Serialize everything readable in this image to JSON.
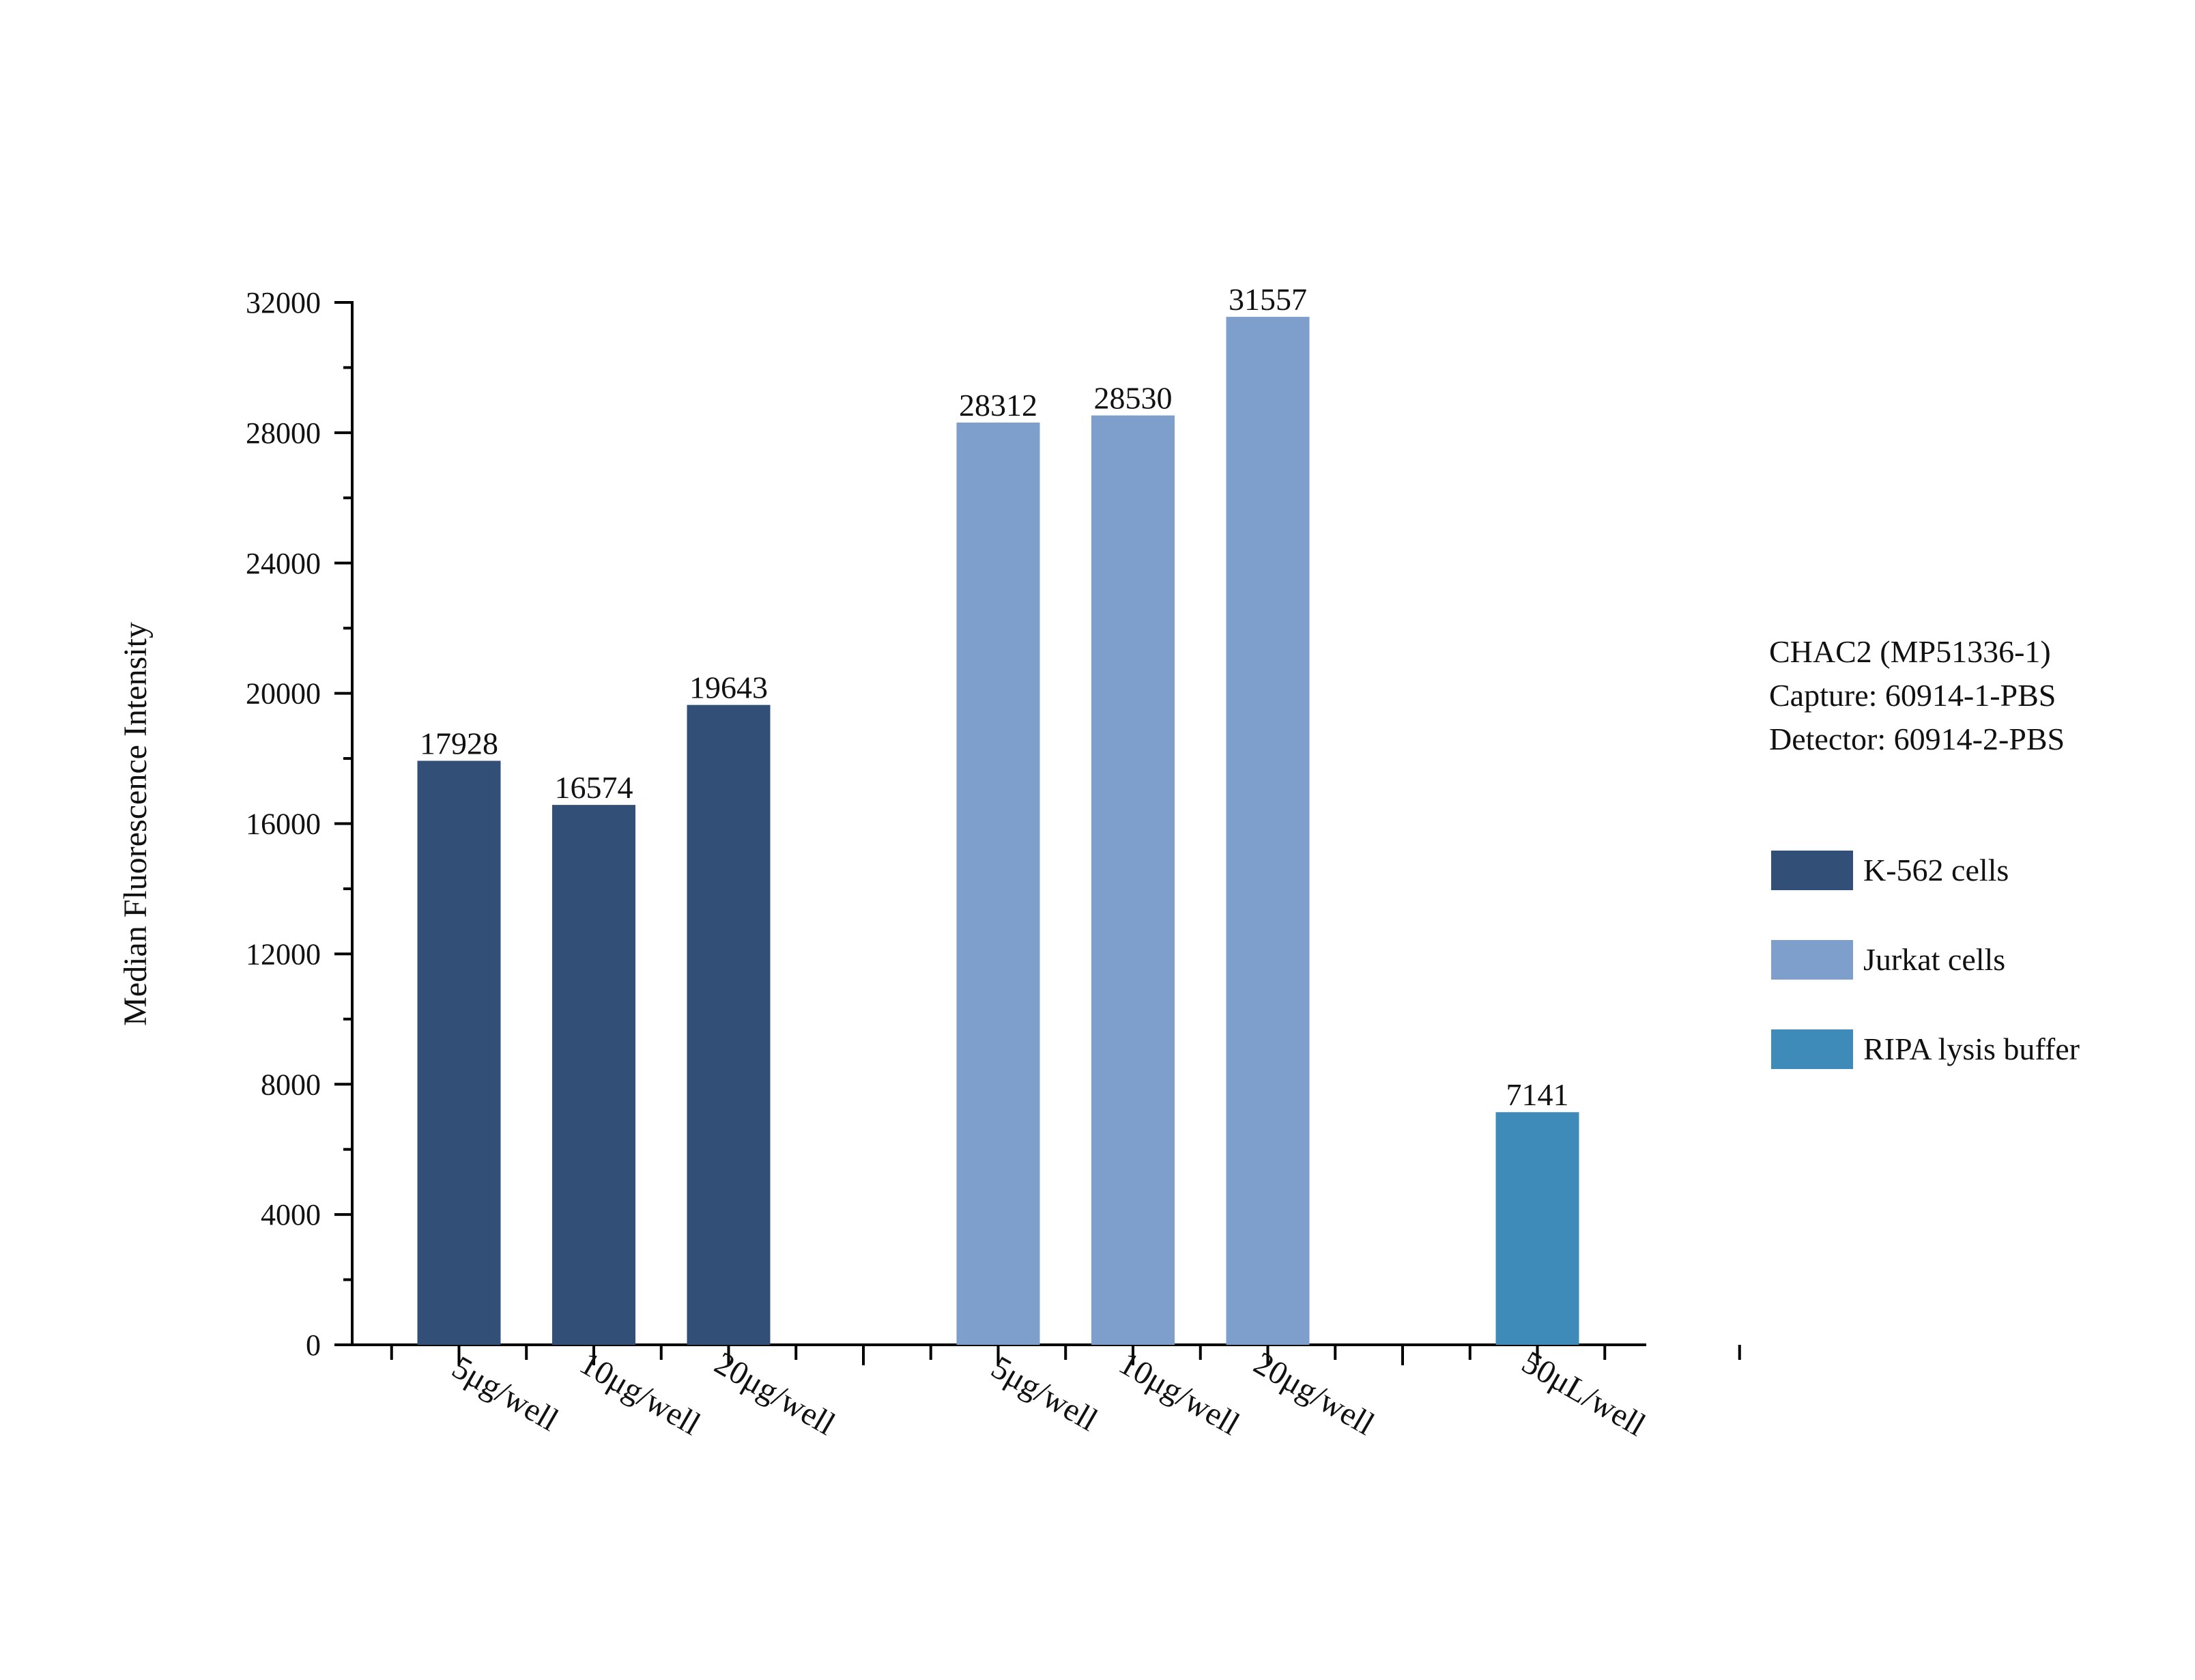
{
  "chart_data": {
    "type": "bar",
    "title": "",
    "xlabel": "",
    "ylabel": "Median Fluorescence Intensity",
    "ylim": [
      0,
      32000
    ],
    "yticks": [
      0,
      4000,
      8000,
      12000,
      16000,
      20000,
      24000,
      28000,
      32000
    ],
    "yminor_step": 2000,
    "grid": false,
    "legend_position": "right",
    "annotation": [
      "CHAC2 (MP51336-1)",
      "Capture: 60914-1-PBS",
      "Detector: 60914-2-PBS"
    ],
    "bars": [
      {
        "category": "5μg/well",
        "series": "K-562 cells",
        "value": 17928
      },
      {
        "category": "10μg/well",
        "series": "K-562 cells",
        "value": 16574
      },
      {
        "category": "20μg/well",
        "series": "K-562 cells",
        "value": 19643
      },
      {
        "category": "5μg/well",
        "series": "Jurkat cells",
        "value": 28312
      },
      {
        "category": "10μg/well",
        "series": "Jurkat cells",
        "value": 28530
      },
      {
        "category": "20μg/well",
        "series": "Jurkat cells",
        "value": 31557
      },
      {
        "category": "50μL/well",
        "series": "RIPA lysis buffer",
        "value": 7141
      }
    ],
    "series": [
      {
        "name": "K-562 cells",
        "color": "#324f77"
      },
      {
        "name": "Jurkat cells",
        "color": "#7e9fcb"
      },
      {
        "name": "RIPA lysis buffer",
        "color": "#3e8bb9"
      }
    ]
  }
}
